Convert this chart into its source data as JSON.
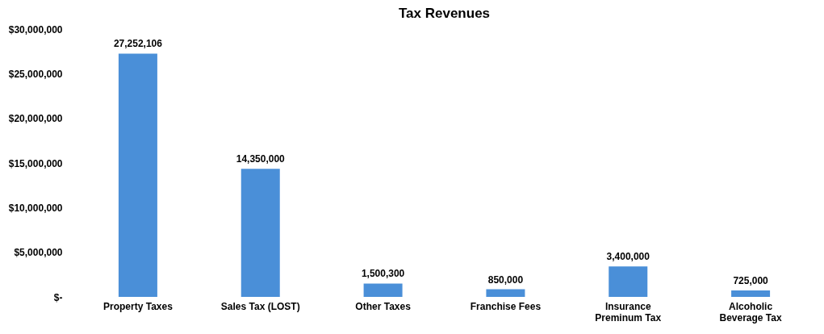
{
  "chart_data": {
    "type": "bar",
    "title": "Tax Revenues",
    "categories": [
      "Property Taxes",
      "Sales Tax (LOST)",
      "Other Taxes",
      "Franchise Fees",
      "Insurance Preminum Tax",
      "Alcoholic Beverage Tax"
    ],
    "values": [
      27252106,
      14350000,
      1500300,
      850000,
      3400000,
      725000
    ],
    "color": "#4a8fd8",
    "ylim": [
      0,
      30000000
    ],
    "yticks": [
      {
        "value": 0,
        "label": "$-"
      },
      {
        "value": 5000000,
        "label": "$5,000,000"
      },
      {
        "value": 10000000,
        "label": "$10,000,000"
      },
      {
        "value": 15000000,
        "label": "$15,000,000"
      },
      {
        "value": 20000000,
        "label": "$20,000,000"
      },
      {
        "value": 25000000,
        "label": "$25,000,000"
      },
      {
        "value": 30000000,
        "label": "$30,000,000"
      }
    ],
    "value_labels": [
      "27,252,106",
      "14,350,000",
      "1,500,300",
      "850,000",
      "3,400,000",
      "725,000"
    ],
    "grid": false
  }
}
